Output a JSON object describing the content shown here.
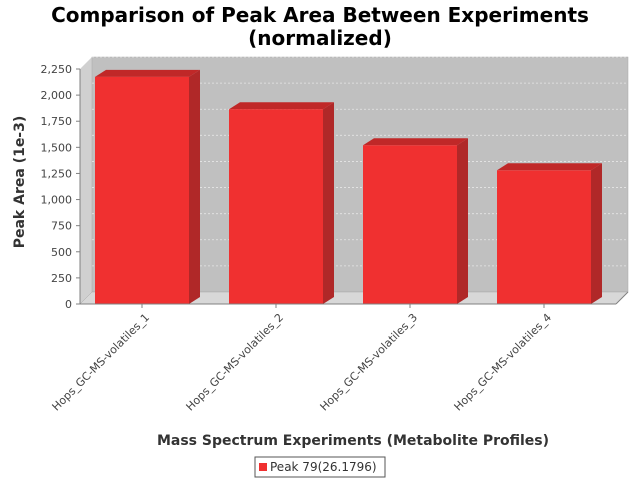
{
  "chart_data": {
    "type": "bar",
    "title_lines": [
      "Comparison of Peak Area Between Experiments",
      "(normalized)"
    ],
    "xlabel": "Mass Spectrum Experiments (Metabolite Profiles)",
    "ylabel": "Peak Area (1e-3)",
    "categories": [
      "Hops_GC-MS-volatiles_1",
      "Hops_GC-MS-volatiles_2",
      "Hops_GC-MS-volatiles_3",
      "Hops_GC-MS-volatiles_4"
    ],
    "series": [
      {
        "name": "Peak 79(26.1796)",
        "values": [
          2175,
          1865,
          1520,
          1280
        ]
      }
    ],
    "ylim": [
      0,
      2250
    ],
    "yticks": [
      0,
      250,
      500,
      750,
      1000,
      1250,
      1500,
      1750,
      2000,
      2250
    ],
    "ytick_labels": [
      "0",
      "250",
      "500",
      "750",
      "1,000",
      "1,250",
      "1,500",
      "1,750",
      "2,000",
      "2,250"
    ],
    "grid": true,
    "legend_position": "bottom-center",
    "colors": {
      "bar_front": "#f03030",
      "bar_side": "#b02828",
      "bar_top": "#c02828",
      "plot_back": "#c0c0c0",
      "plot_floor": "#d8d8d8",
      "grid": "#e6e6e6"
    }
  }
}
